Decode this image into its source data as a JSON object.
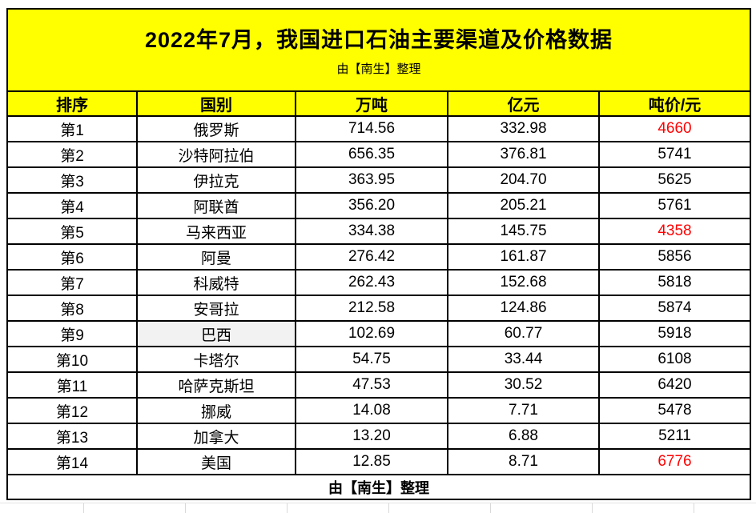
{
  "chart_data": {
    "type": "table",
    "title": "2022年7月，我国进口石油主要渠道及价格数据",
    "subtitle": "由【南生】整理",
    "footer": "由【南生】整理",
    "columns": [
      "排序",
      "国别",
      "万吨",
      "亿元",
      "吨价/元"
    ],
    "rows": [
      {
        "rank": "第1",
        "country": "俄罗斯",
        "volume_wan_ton": "714.56",
        "value_yi_yuan": "332.98",
        "price_per_ton": "4660",
        "price_red": true,
        "country_highlight": false
      },
      {
        "rank": "第2",
        "country": "沙特阿拉伯",
        "volume_wan_ton": "656.35",
        "value_yi_yuan": "376.81",
        "price_per_ton": "5741",
        "price_red": false,
        "country_highlight": false
      },
      {
        "rank": "第3",
        "country": "伊拉克",
        "volume_wan_ton": "363.95",
        "value_yi_yuan": "204.70",
        "price_per_ton": "5625",
        "price_red": false,
        "country_highlight": false
      },
      {
        "rank": "第4",
        "country": "阿联酋",
        "volume_wan_ton": "356.20",
        "value_yi_yuan": "205.21",
        "price_per_ton": "5761",
        "price_red": false,
        "country_highlight": false
      },
      {
        "rank": "第5",
        "country": "马来西亚",
        "volume_wan_ton": "334.38",
        "value_yi_yuan": "145.75",
        "price_per_ton": "4358",
        "price_red": true,
        "country_highlight": false
      },
      {
        "rank": "第6",
        "country": "阿曼",
        "volume_wan_ton": "276.42",
        "value_yi_yuan": "161.87",
        "price_per_ton": "5856",
        "price_red": false,
        "country_highlight": false
      },
      {
        "rank": "第7",
        "country": "科威特",
        "volume_wan_ton": "262.43",
        "value_yi_yuan": "152.68",
        "price_per_ton": "5818",
        "price_red": false,
        "country_highlight": false
      },
      {
        "rank": "第8",
        "country": "安哥拉",
        "volume_wan_ton": "212.58",
        "value_yi_yuan": "124.86",
        "price_per_ton": "5874",
        "price_red": false,
        "country_highlight": false
      },
      {
        "rank": "第9",
        "country": "巴西",
        "volume_wan_ton": "102.69",
        "value_yi_yuan": "60.77",
        "price_per_ton": "5918",
        "price_red": false,
        "country_highlight": true
      },
      {
        "rank": "第10",
        "country": "卡塔尔",
        "volume_wan_ton": "54.75",
        "value_yi_yuan": "33.44",
        "price_per_ton": "6108",
        "price_red": false,
        "country_highlight": false
      },
      {
        "rank": "第11",
        "country": "哈萨克斯坦",
        "volume_wan_ton": "47.53",
        "value_yi_yuan": "30.52",
        "price_per_ton": "6420",
        "price_red": false,
        "country_highlight": false
      },
      {
        "rank": "第12",
        "country": "挪威",
        "volume_wan_ton": "14.08",
        "value_yi_yuan": "7.71",
        "price_per_ton": "5478",
        "price_red": false,
        "country_highlight": false
      },
      {
        "rank": "第13",
        "country": "加拿大",
        "volume_wan_ton": "13.20",
        "value_yi_yuan": "6.88",
        "price_per_ton": "5211",
        "price_red": false,
        "country_highlight": false
      },
      {
        "rank": "第14",
        "country": "美国",
        "volume_wan_ton": "12.85",
        "value_yi_yuan": "8.71",
        "price_per_ton": "6776",
        "price_red": true,
        "country_highlight": false
      }
    ]
  },
  "colors": {
    "header_bg": "#FFFF00",
    "border": "#000000",
    "text": "#000000",
    "red_price": "#FF0000",
    "highlight_cell_bg": "#F2F2F2"
  }
}
